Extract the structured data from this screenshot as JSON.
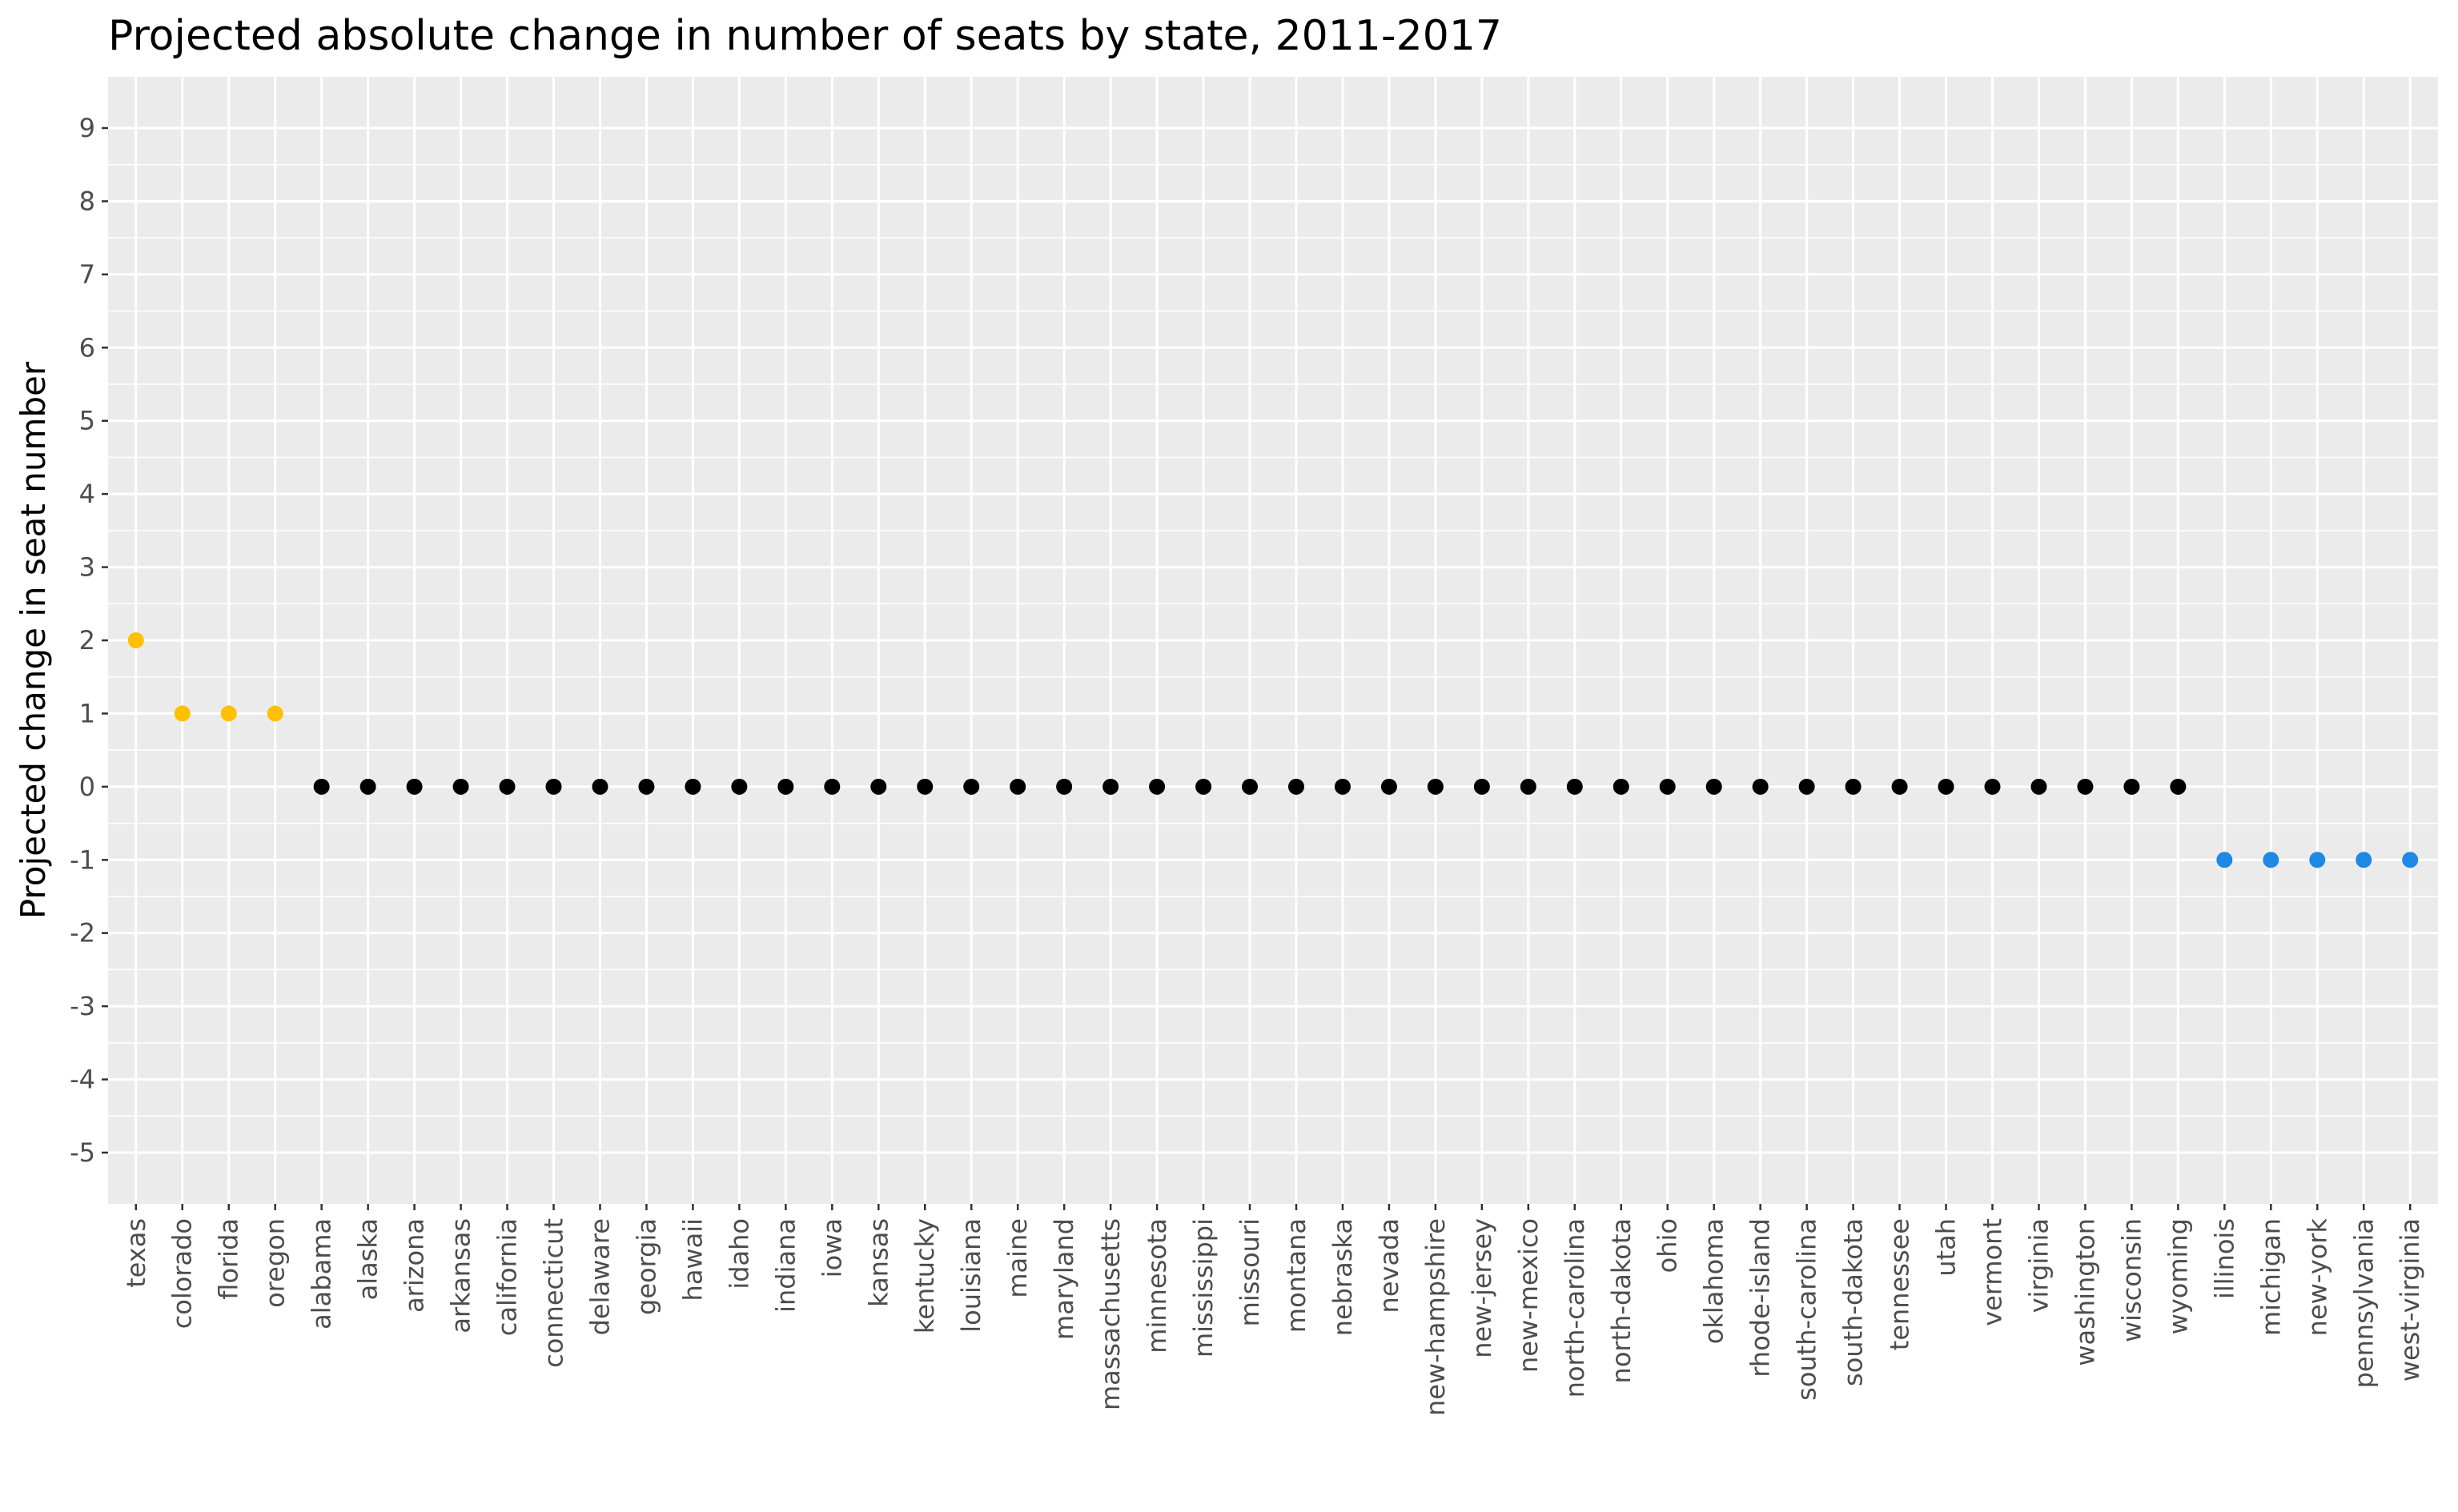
{
  "chart_data": {
    "type": "scatter",
    "title": "Projected absolute change in number of seats by state, 2011-2017",
    "xlabel": "",
    "ylabel": "Projected change in seat number",
    "ylim": [
      -5.7,
      9.7
    ],
    "yticks": [
      -5,
      -4,
      -3,
      -2,
      -1,
      0,
      1,
      2,
      3,
      4,
      5,
      6,
      7,
      8,
      9
    ],
    "ytick_labels": [
      "-5",
      "-4",
      "-3",
      "-2",
      "-1",
      "0",
      "1",
      "2",
      "3",
      "4",
      "5",
      "6",
      "7",
      "8",
      "9"
    ],
    "grid": true,
    "legend": "none",
    "colors": {
      "positive": "#FFC000",
      "zero": "#000000",
      "negative": "#1E88E5",
      "panel_background": "#EBEBEB",
      "grid": "#FFFFFF"
    },
    "categories": [
      "texas",
      "colorado",
      "florida",
      "oregon",
      "alabama",
      "alaska",
      "arizona",
      "arkansas",
      "california",
      "connecticut",
      "delaware",
      "georgia",
      "hawaii",
      "idaho",
      "indiana",
      "iowa",
      "kansas",
      "kentucky",
      "louisiana",
      "maine",
      "maryland",
      "massachusetts",
      "minnesota",
      "mississippi",
      "missouri",
      "montana",
      "nebraska",
      "nevada",
      "new-hampshire",
      "new-jersey",
      "new-mexico",
      "north-carolina",
      "north-dakota",
      "ohio",
      "oklahoma",
      "rhode-island",
      "south-carolina",
      "south-dakota",
      "tennessee",
      "utah",
      "vermont",
      "virginia",
      "washington",
      "wisconsin",
      "wyoming",
      "illinois",
      "michigan",
      "new-york",
      "pennsylvania",
      "west-virginia"
    ],
    "values": [
      2,
      1,
      1,
      1,
      0,
      0,
      0,
      0,
      0,
      0,
      0,
      0,
      0,
      0,
      0,
      0,
      0,
      0,
      0,
      0,
      0,
      0,
      0,
      0,
      0,
      0,
      0,
      0,
      0,
      0,
      0,
      0,
      0,
      0,
      0,
      0,
      0,
      0,
      0,
      0,
      0,
      0,
      0,
      0,
      0,
      -1,
      -1,
      -1,
      -1,
      -1
    ]
  }
}
